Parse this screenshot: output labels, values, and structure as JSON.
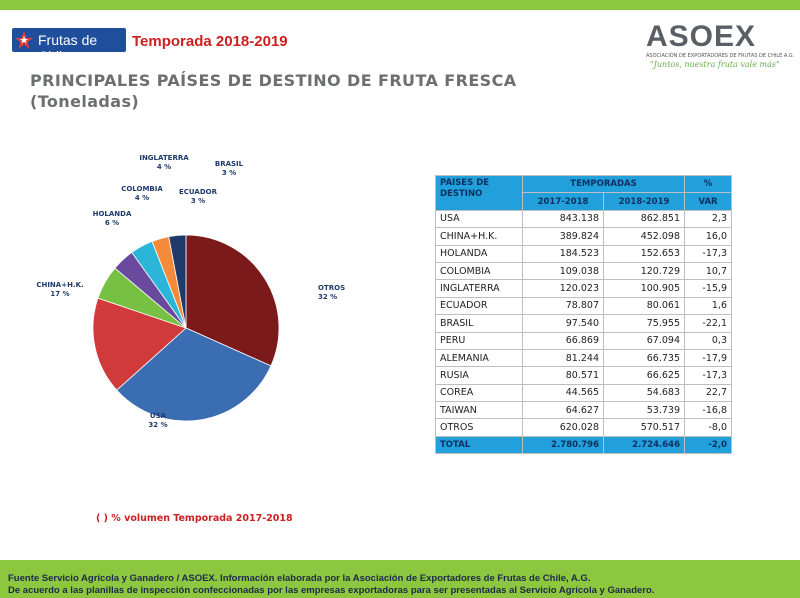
{
  "header": {
    "frutas_logo": "Frutas de Chile",
    "season": "Temporada 2018-2019",
    "asoex_name": "ASOEX",
    "asoex_subtitle": "ASOCIACIÓN DE EXPORTADORES DE FRUTAS DE CHILE A.G.",
    "asoex_slogan": "\"Juntos, nuestra fruta vale más\""
  },
  "title": {
    "line1": "PRINCIPALES PAÍSES DE DESTINO DE FRUTA FRESCA",
    "line2": "(Toneladas)"
  },
  "chart_data": {
    "type": "pie",
    "slices": [
      {
        "label": "OTROS",
        "value": 32,
        "pct_label": "32 %",
        "color": "#7a1a1a"
      },
      {
        "label": "USA",
        "value": 32,
        "pct_label": "32 %",
        "color": "#3b6db3"
      },
      {
        "label": "CHINA+H.K.",
        "value": 17,
        "pct_label": "17 %",
        "color": "#d13a3a"
      },
      {
        "label": "HOLANDA",
        "value": 6,
        "pct_label": "6 %",
        "color": "#76c043"
      },
      {
        "label": "COLOMBIA",
        "value": 4,
        "pct_label": "4 %",
        "color": "#6a4a9e"
      },
      {
        "label": "INGLATERRA",
        "value": 4,
        "pct_label": "4 %",
        "color": "#2bb5d8"
      },
      {
        "label": "BRASIL",
        "value": 3,
        "pct_label": "3 %",
        "color": "#f58b3a"
      },
      {
        "label": "ECUADOR",
        "value": 3,
        "pct_label": "3 %",
        "color": "#1f3a6b"
      }
    ]
  },
  "note": "( ) % volumen Temporada 2017-2018",
  "table": {
    "header_country": [
      "PAISES DE",
      "DESTINO"
    ],
    "header_temporadas": "TEMPORADAS",
    "header_pct": "%",
    "header_2017": "2017-2018",
    "header_2018": "2018-2019",
    "header_var": "VAR",
    "rows": [
      {
        "country": "USA",
        "y2017": "843.138",
        "y2018": "862.851",
        "var": "2,3"
      },
      {
        "country": "CHINA+H.K.",
        "y2017": "389.824",
        "y2018": "452.098",
        "var": "16,0"
      },
      {
        "country": "HOLANDA",
        "y2017": "184.523",
        "y2018": "152.653",
        "var": "-17,3"
      },
      {
        "country": "COLOMBIA",
        "y2017": "109.038",
        "y2018": "120.729",
        "var": "10,7"
      },
      {
        "country": "INGLATERRA",
        "y2017": "120.023",
        "y2018": "100.905",
        "var": "-15,9"
      },
      {
        "country": "ECUADOR",
        "y2017": "78.807",
        "y2018": "80.061",
        "var": "1,6"
      },
      {
        "country": "BRASIL",
        "y2017": "97.540",
        "y2018": "75.955",
        "var": "-22,1"
      },
      {
        "country": "PERU",
        "y2017": "66.869",
        "y2018": "67.094",
        "var": "0,3"
      },
      {
        "country": "ALEMANIA",
        "y2017": "81.244",
        "y2018": "66.735",
        "var": "-17,9"
      },
      {
        "country": "RUSIA",
        "y2017": "80.571",
        "y2018": "66.625",
        "var": "-17,3"
      },
      {
        "country": "COREA",
        "y2017": "44.565",
        "y2018": "54.683",
        "var": "22,7"
      },
      {
        "country": "TAIWAN",
        "y2017": "64.627",
        "y2018": "53.739",
        "var": "-16,8"
      },
      {
        "country": "OTROS",
        "y2017": "620.028",
        "y2018": "570.517",
        "var": "-8,0"
      }
    ],
    "total": {
      "country": "TOTAL",
      "y2017": "2.780.796",
      "y2018": "2.724.646",
      "var": "-2,0"
    }
  },
  "footer": {
    "line1": "Fuente Servicio Agrícola y Ganadero / ASOEX. Información elaborada por la Asociación de Exportadores de  Frutas de Chile, A.G.",
    "line2": "De acuerdo a las planillas de inspección confeccionadas por las empresas exportadoras  para ser presentadas al Servicio Agrícola y Ganadero."
  }
}
